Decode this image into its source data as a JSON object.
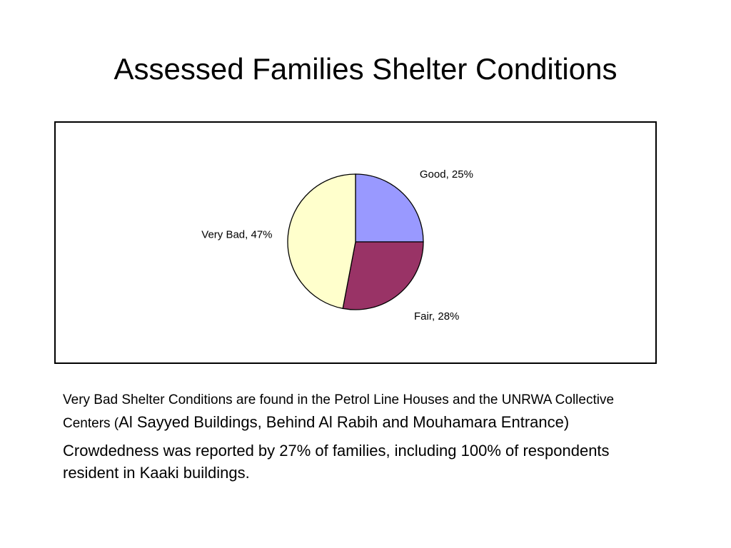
{
  "title": "Assessed Families Shelter Conditions",
  "chart_data": {
    "type": "pie",
    "title": "",
    "slices": [
      {
        "label": "Good",
        "value": 25,
        "display": "Good, 25%",
        "color": "#9999ff"
      },
      {
        "label": "Fair",
        "value": 28,
        "display": "Fair, 28%",
        "color": "#993366"
      },
      {
        "label": "Very Bad",
        "value": 47,
        "display": "Very Bad, 47%",
        "color": "#ffffcc"
      }
    ],
    "unit": "%",
    "start": "12 o'clock",
    "direction": "clockwise",
    "legend": "none",
    "outline_color": "#000000"
  },
  "notes": {
    "para1_small": "Very Bad Shelter Conditions are found in the Petrol Line Houses and the UNRWA Collective Centers (",
    "para1_large": "Al Sayyed Buildings, Behind Al Rabih and Mouhamara Entrance)",
    "para2": "Crowdedness was reported by 27% of families, including 100% of respondents resident in Kaaki buildings."
  }
}
